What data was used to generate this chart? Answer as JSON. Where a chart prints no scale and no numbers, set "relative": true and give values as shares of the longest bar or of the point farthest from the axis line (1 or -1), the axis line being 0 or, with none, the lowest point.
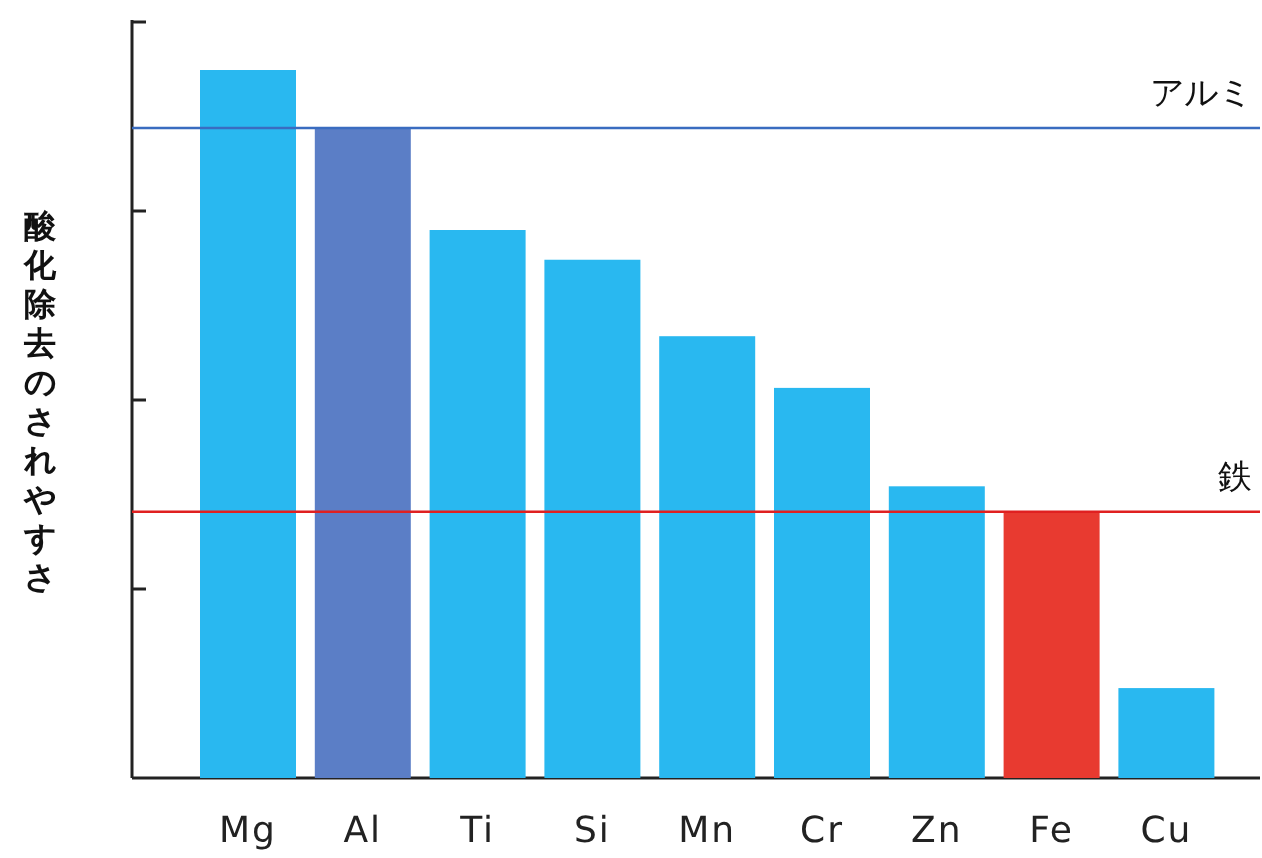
{
  "chart_data": {
    "type": "bar",
    "relative": true,
    "ylabel": "酸化除去のされやすさ",
    "categories": [
      "Mg",
      "Al",
      "Ti",
      "Si",
      "Mn",
      "Cr",
      "Zn",
      "Fe",
      "Cu"
    ],
    "values": [
      1,
      0.918,
      0.774,
      0.732,
      0.624,
      0.551,
      0.412,
      0.376,
      0.127
    ],
    "colors": [
      "#29b8f0",
      "#5b7ec6",
      "#29b8f0",
      "#29b8f0",
      "#29b8f0",
      "#29b8f0",
      "#29b8f0",
      "#e83a30",
      "#29b8f0"
    ],
    "ref_lines": [
      {
        "axis": "y",
        "value": 0.918,
        "label": "アルミ",
        "color": "#3a6cc0"
      },
      {
        "axis": "y",
        "value": 0.376,
        "label": "鉄",
        "color": "#e02020"
      }
    ]
  }
}
